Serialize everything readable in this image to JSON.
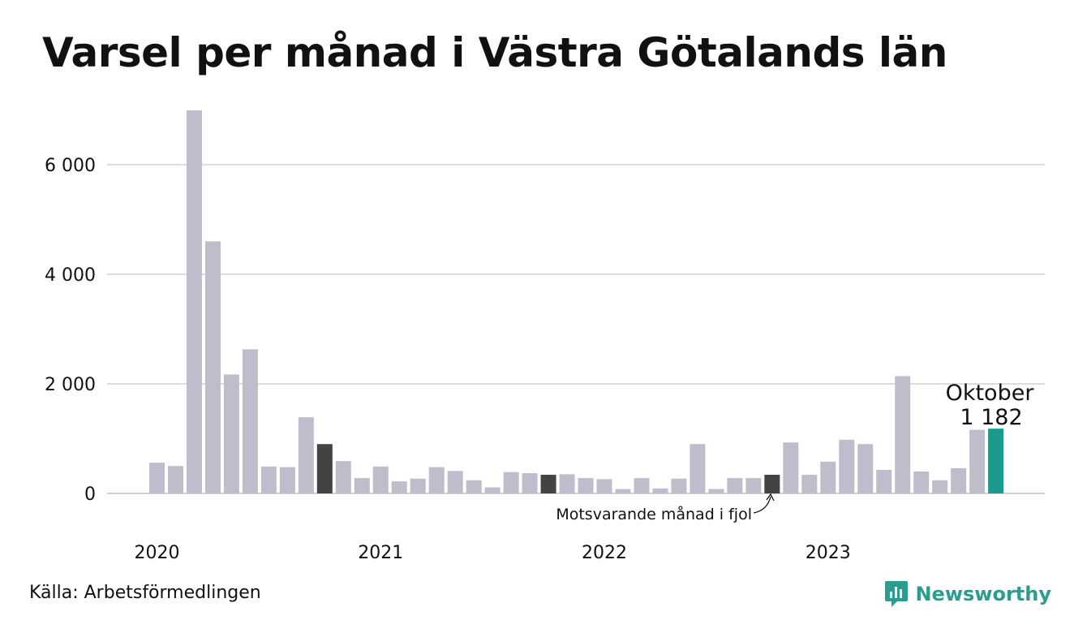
{
  "title": "Varsel per månad i Västra Götalands län",
  "source": "Källa: Arbetsförmedlingen",
  "brand": "Newsworthy",
  "colors": {
    "bar": "#bfbdcb",
    "previous_year": "#434343",
    "highlight": "#1b9a8b",
    "grid": "#dcdcdc",
    "brand": "#2a9d8f"
  },
  "chart_data": {
    "type": "bar",
    "title": "Varsel per månad i Västra Götalands län",
    "xlabel": "",
    "ylabel": "",
    "ylim": [
      0,
      7000
    ],
    "grid": true,
    "legend": "none",
    "y_ticks": [
      {
        "value": 0,
        "label": "0"
      },
      {
        "value": 2000,
        "label": "2 000"
      },
      {
        "value": 4000,
        "label": "4 000"
      },
      {
        "value": 6000,
        "label": "6 000"
      }
    ],
    "x_ticks": [
      {
        "index": 0,
        "label": "2020"
      },
      {
        "index": 12,
        "label": "2021"
      },
      {
        "index": 24,
        "label": "2022"
      },
      {
        "index": 36,
        "label": "2023"
      }
    ],
    "categories": [
      "2020-01",
      "2020-02",
      "2020-03",
      "2020-04",
      "2020-05",
      "2020-06",
      "2020-07",
      "2020-08",
      "2020-09",
      "2020-10",
      "2020-11",
      "2020-12",
      "2021-01",
      "2021-02",
      "2021-03",
      "2021-04",
      "2021-05",
      "2021-06",
      "2021-07",
      "2021-08",
      "2021-09",
      "2021-10",
      "2021-11",
      "2021-12",
      "2022-01",
      "2022-02",
      "2022-03",
      "2022-04",
      "2022-05",
      "2022-06",
      "2022-07",
      "2022-08",
      "2022-09",
      "2022-10",
      "2022-11",
      "2022-12",
      "2023-01",
      "2023-02",
      "2023-03",
      "2023-04",
      "2023-05",
      "2023-06",
      "2023-07",
      "2023-08",
      "2023-09",
      "2023-10"
    ],
    "values": [
      560,
      500,
      6990,
      4600,
      2170,
      2630,
      490,
      480,
      1390,
      900,
      590,
      280,
      490,
      220,
      270,
      480,
      410,
      240,
      110,
      390,
      370,
      340,
      350,
      280,
      260,
      80,
      280,
      90,
      270,
      900,
      80,
      280,
      280,
      340,
      930,
      340,
      580,
      980,
      900,
      430,
      2140,
      400,
      240,
      460,
      1160,
      1182
    ],
    "previous_year_indices": [
      9,
      21,
      33
    ],
    "highlight_index": 45,
    "highlight_label": {
      "month": "Oktober",
      "value": "1 182"
    },
    "annotation": "Motsvarande månad i fjol"
  }
}
